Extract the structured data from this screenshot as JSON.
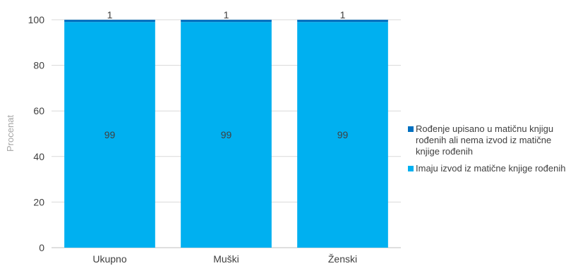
{
  "chart_data": {
    "type": "bar",
    "stacked": true,
    "categories": [
      "Ukupno",
      "Muški",
      "Ženski"
    ],
    "series": [
      {
        "name": "Imaju izvod iz matične knjige rođenih",
        "values": [
          99,
          99,
          99
        ],
        "labels": [
          "99",
          "99",
          "99"
        ],
        "color": "#00b0f0"
      },
      {
        "name": "Rođenje upisano u matičnu knjigu rođenih ali nema izvod iz matične knjige rođenih",
        "values": [
          1,
          1,
          1
        ],
        "labels": [
          "1",
          "1",
          "1"
        ],
        "color": "#0070c0"
      }
    ],
    "ylabel": "Procenat",
    "xlabel": "",
    "ylim": [
      0,
      100
    ],
    "yticks": [
      0,
      20,
      40,
      60,
      80,
      100
    ],
    "grid": true,
    "legend_position": "right"
  }
}
